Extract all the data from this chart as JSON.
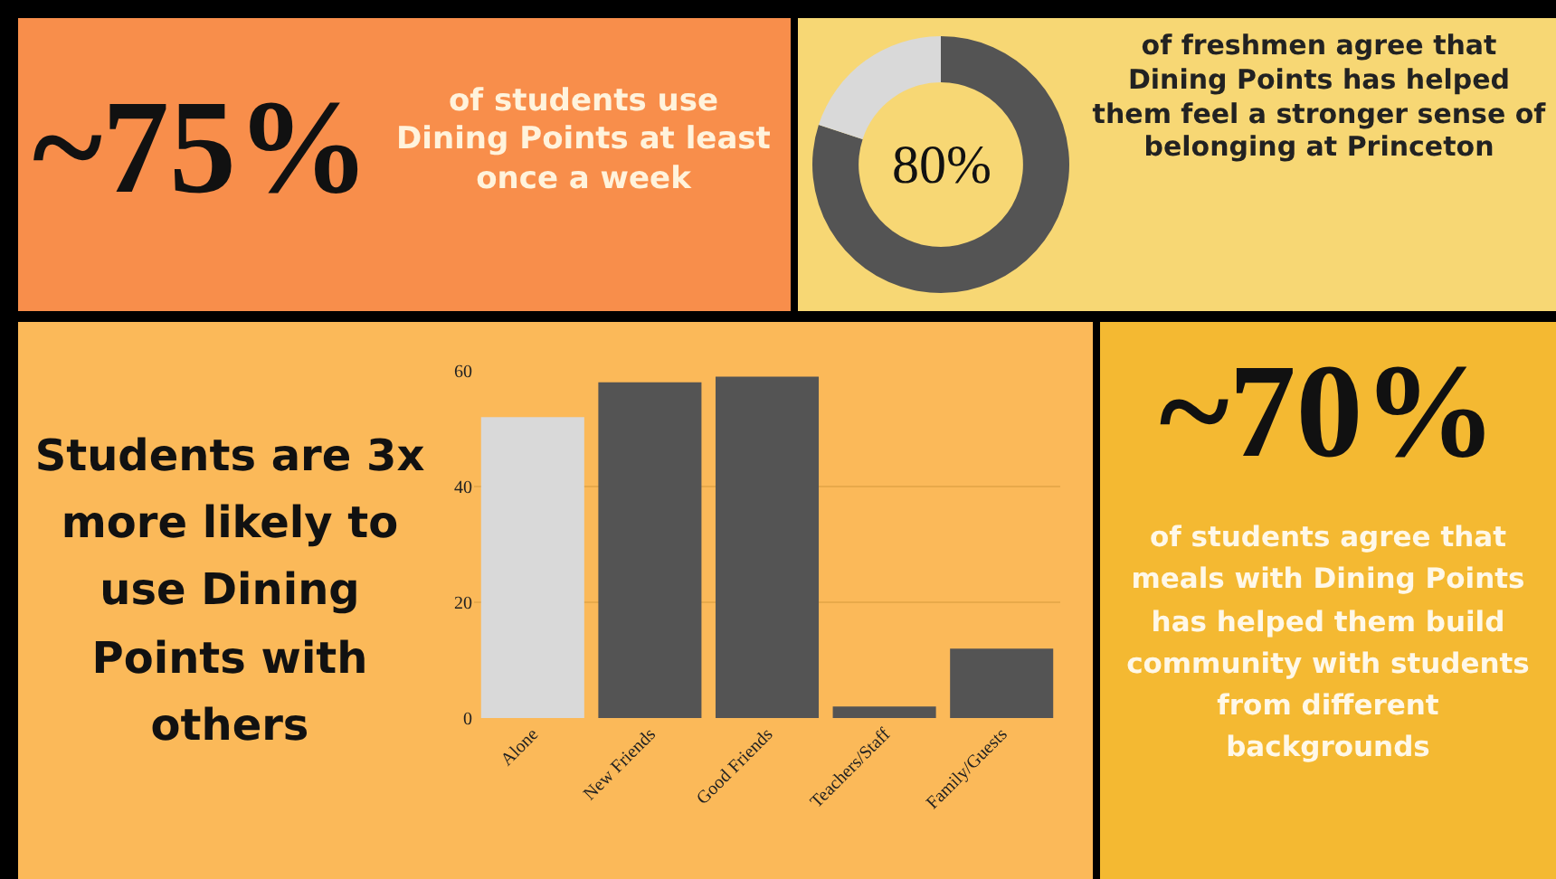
{
  "chart_data": [
    {
      "type": "other",
      "title": "~75%",
      "subtitle": "of students use Dining Points at least once a week"
    },
    {
      "type": "donut",
      "categories": [
        null,
        null
      ],
      "values": [
        80,
        20
      ],
      "colors": [
        "#545454",
        "#d9d9d9"
      ],
      "annotations": [
        "80%",
        "of freshmen agree that Dining Points has helped them feel a stronger sense of belonging at Princeton"
      ]
    },
    {
      "type": "bar",
      "title": "Students are 3x more likely to use Dining Points with others",
      "categories": [
        "Alone",
        "New Friends",
        "Good Friends",
        "Teachers/Staff",
        "Family/Guests"
      ],
      "values": [
        52,
        58,
        59,
        2,
        12
      ],
      "colors": [
        "#d9d9d9",
        "#545454",
        "#545454",
        "#545454",
        "#545454"
      ],
      "ylim": [
        0,
        60
      ],
      "yticks": [
        0,
        20,
        40,
        60
      ],
      "grid": "y"
    },
    {
      "type": "other",
      "title": "~70%",
      "subtitle": "of students agree that meals with Dining Points has helped them build community with students from different backgrounds"
    }
  ]
}
